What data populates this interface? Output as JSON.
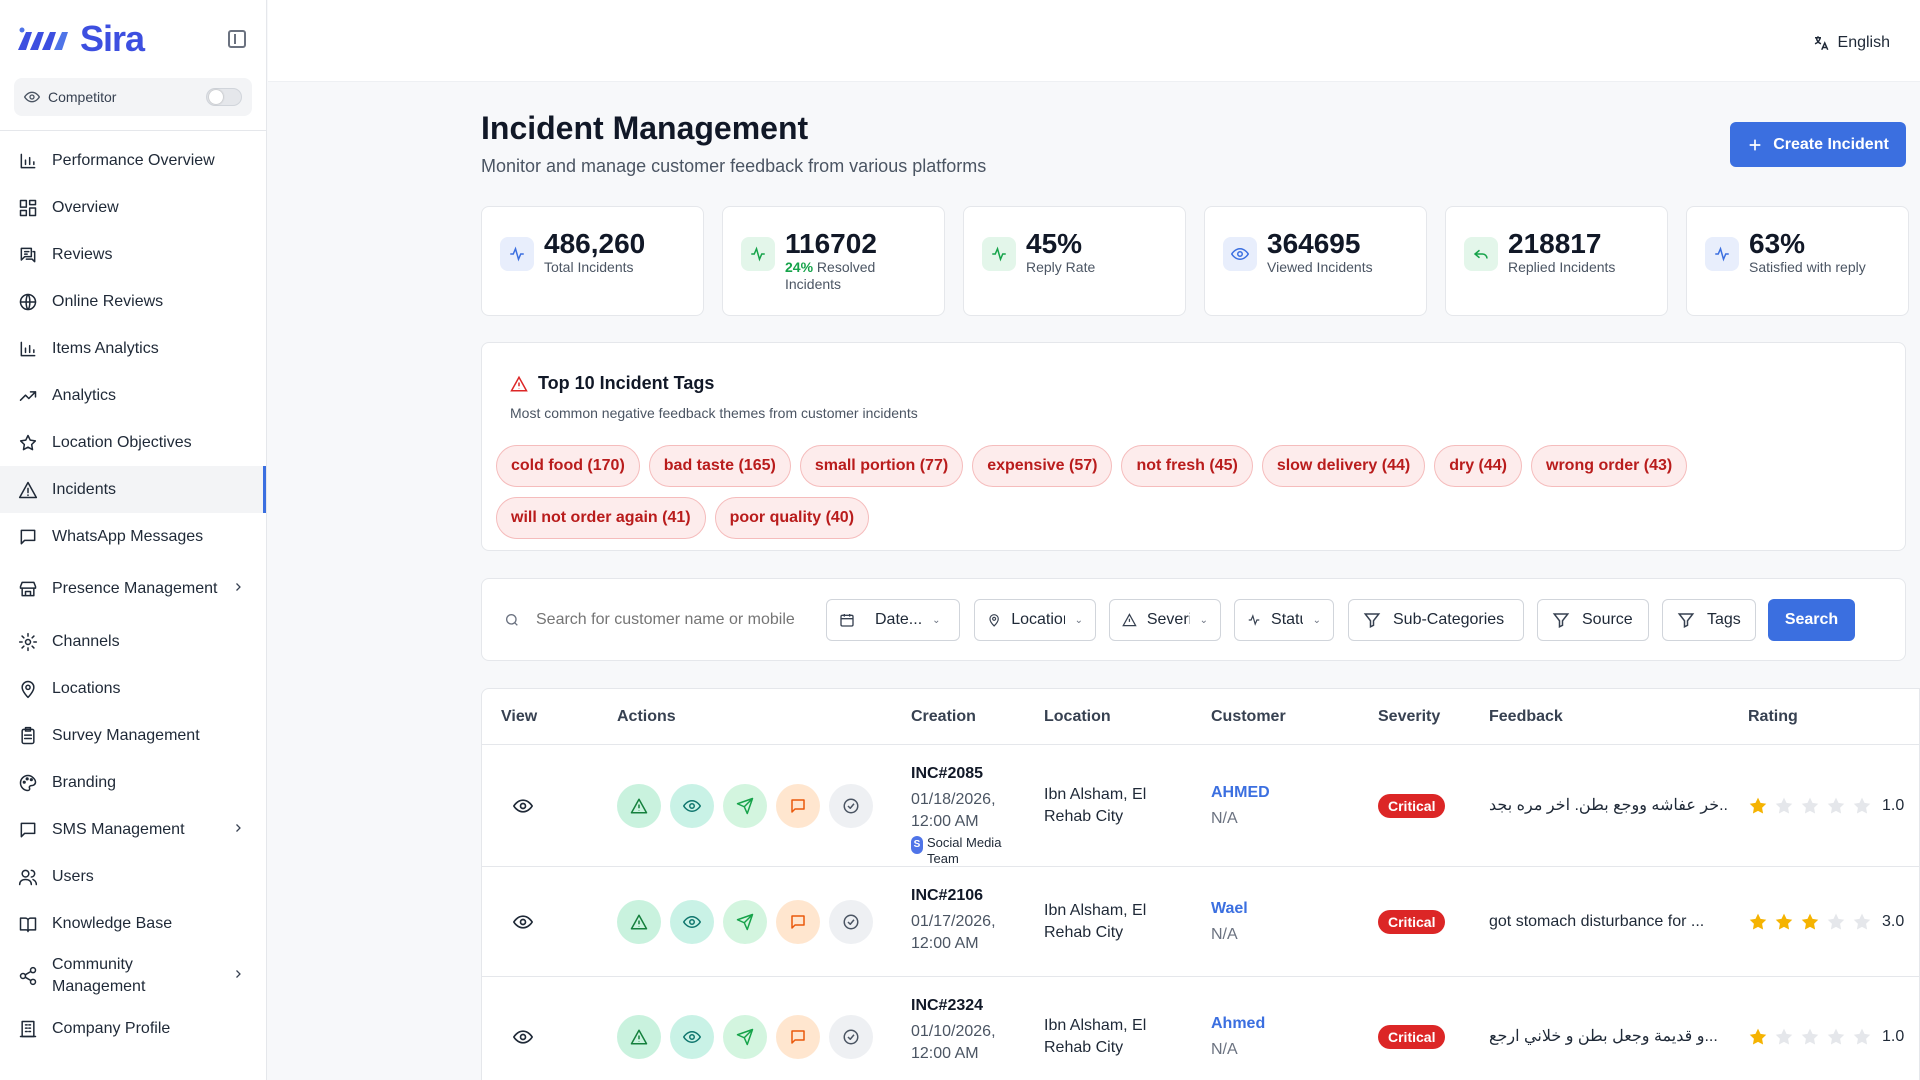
{
  "brand": {
    "name": "Sira"
  },
  "competitor": {
    "label": "Competitor"
  },
  "sidebar": {
    "items": [
      {
        "label": "Performance Overview",
        "icon": "bar-chart-icon"
      },
      {
        "label": "Overview",
        "icon": "dashboard-icon"
      },
      {
        "label": "Reviews",
        "icon": "reviews-icon"
      },
      {
        "label": "Online Reviews",
        "icon": "globe-icon"
      },
      {
        "label": "Items Analytics",
        "icon": "bar-chart-icon"
      },
      {
        "label": "Analytics",
        "icon": "trend-icon"
      },
      {
        "label": "Location Objectives",
        "icon": "star-icon"
      },
      {
        "label": "Incidents",
        "icon": "warning-icon"
      },
      {
        "label": "WhatsApp Messages",
        "icon": "message-icon"
      },
      {
        "label": "Presence Management",
        "icon": "store-icon"
      },
      {
        "label": "Channels",
        "icon": "gear-icon"
      },
      {
        "label": "Locations",
        "icon": "pin-icon"
      },
      {
        "label": "Survey Management",
        "icon": "clipboard-icon"
      },
      {
        "label": "Branding",
        "icon": "palette-icon"
      },
      {
        "label": "SMS Management",
        "icon": "message-icon"
      },
      {
        "label": "Users",
        "icon": "users-icon"
      },
      {
        "label": "Knowledge Base",
        "icon": "book-icon"
      },
      {
        "label": "Community Management",
        "icon": "share-icon"
      },
      {
        "label": "Company Profile",
        "icon": "building-icon"
      }
    ]
  },
  "topbar": {
    "language": "English"
  },
  "header": {
    "title": "Incident Management",
    "subtitle": "Monitor and manage customer feedback from various platforms",
    "create_label": "Create Incident"
  },
  "stats": [
    {
      "value": "486,260",
      "label": "Total Incidents",
      "icon": "activity-icon",
      "color": "#e8eefc"
    },
    {
      "value": "116702",
      "pct": "24%",
      "label": "Resolved Incidents",
      "icon": "activity-icon",
      "color": "#e3f6ea"
    },
    {
      "value": "45%",
      "label": "Reply Rate",
      "icon": "activity-icon",
      "color": "#e3f6ea"
    },
    {
      "value": "364695",
      "label": "Viewed Incidents",
      "icon": "eye-icon",
      "color": "#e8eefc"
    },
    {
      "value": "218817",
      "label": "Replied Incidents",
      "icon": "reply-icon",
      "color": "#e3f6ea"
    },
    {
      "value": "63%",
      "label": "Satisfied with reply",
      "icon": "activity-icon",
      "color": "#e8eefc"
    }
  ],
  "tags": {
    "title": "Top 10 Incident Tags",
    "subtitle": "Most common negative feedback themes from customer incidents",
    "items": [
      "cold food (170)",
      "bad taste (165)",
      "small portion (77)",
      "expensive (57)",
      "not fresh (45)",
      "slow delivery (44)",
      "dry (44)",
      "wrong order (43)",
      "will not order again (41)",
      "poor quality (40)"
    ]
  },
  "filters": {
    "search_placeholder": "Search for customer name or mobile",
    "date": "Date...",
    "location": "Location",
    "severity": "Severity",
    "status": "Status",
    "subcategories": "Sub-Categories",
    "source": "Source",
    "tags": "Tags",
    "search_button": "Search"
  },
  "table": {
    "headers": {
      "view": "View",
      "actions": "Actions",
      "creation": "Creation",
      "location": "Location",
      "customer": "Customer",
      "severity": "Severity",
      "feedback": "Feedback",
      "rating": "Rating"
    },
    "rows": [
      {
        "id": "INC#2085",
        "date": "01/18/2026,",
        "time": "12:00 AM",
        "team": "Social Media Team",
        "location": "Ibn Alsham, El Rehab City",
        "customer": "AHMED",
        "mobile": "N/A",
        "severity": "Critical",
        "feedback": "خر عفاشه ووجع بطن. اخر مره بجد...",
        "rating": 1,
        "rating_text": "1.0"
      },
      {
        "id": "INC#2106",
        "date": "01/17/2026,",
        "time": "12:00 AM",
        "team": "",
        "location": "Ibn Alsham, El Rehab City",
        "customer": "Wael",
        "mobile": "N/A",
        "severity": "Critical",
        "feedback": "got stomach disturbance for ...",
        "rating": 3,
        "rating_text": "3.0"
      },
      {
        "id": "INC#2324",
        "date": "01/10/2026,",
        "time": "12:00 AM",
        "team": "",
        "location": "Ibn Alsham, El Rehab City",
        "customer": "Ahmed",
        "mobile": "N/A",
        "severity": "Critical",
        "feedback": "و قديمة وجعل بطن و خلاني ارجع...",
        "rating": 1,
        "rating_text": "1.0"
      }
    ]
  },
  "colors": {
    "accent": "#3b6fe0",
    "critical": "#dc2626",
    "tag_text": "#b91c1c",
    "star": "#f5b301"
  }
}
